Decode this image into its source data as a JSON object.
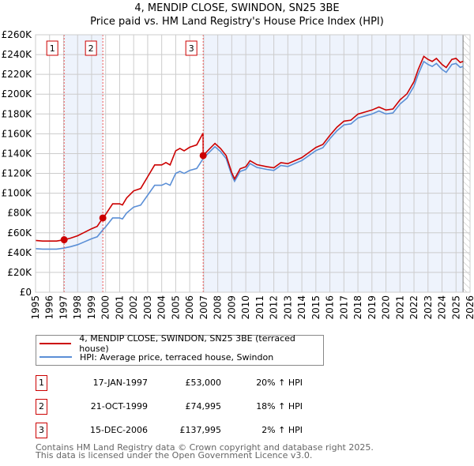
{
  "title_line1": "4, MENDIP CLOSE, SWINDON, SN25 3BE",
  "title_line2": "Price paid vs. HM Land Registry's House Price Index (HPI)",
  "legend": {
    "property": "4, MENDIP CLOSE, SWINDON, SN25 3BE (terraced house)",
    "hpi": "HPI: Average price, terraced house, Swindon"
  },
  "sales": [
    {
      "num": "1",
      "date": "17-JAN-1997",
      "price": "£53,000",
      "hpi_diff": "20% ↑ HPI",
      "t": 1997.04,
      "value": 53
    },
    {
      "num": "2",
      "date": "21-OCT-1999",
      "price": "£74,995",
      "hpi_diff": "18% ↑ HPI",
      "t": 1999.8,
      "value": 74.995
    },
    {
      "num": "3",
      "date": "15-DEC-2006",
      "price": "£137,995",
      "hpi_diff": "2% ↑ HPI",
      "t": 2006.96,
      "value": 137.995
    }
  ],
  "footer_line1": "Contains HM Land Registry data © Crown copyright and database right 2025.",
  "footer_line2": "This data is licensed under the Open Government Licence v3.0.",
  "colors": {
    "property": "#cc0000",
    "hpi": "#5b8fd6",
    "shade": "#eef3fc",
    "grid": "#cccccc"
  },
  "chart_data": {
    "type": "line",
    "title": "4, MENDIP CLOSE, SWINDON, SN25 3BE - Price paid vs. HM Land Registry's House Price Index (HPI)",
    "xlabel": "",
    "ylabel": "",
    "xlim": [
      1995,
      2026
    ],
    "ylim": [
      0,
      260
    ],
    "x_ticks": [
      "1995",
      "1996",
      "1997",
      "1998",
      "1999",
      "2000",
      "2001",
      "2002",
      "2003",
      "2004",
      "2005",
      "2006",
      "2007",
      "2008",
      "2009",
      "2010",
      "2011",
      "2012",
      "2013",
      "2014",
      "2015",
      "2016",
      "2017",
      "2018",
      "2019",
      "2020",
      "2021",
      "2022",
      "2023",
      "2024",
      "2025",
      "2026"
    ],
    "y_ticks": [
      "£0",
      "£20K",
      "£40K",
      "£60K",
      "£80K",
      "£100K",
      "£120K",
      "£140K",
      "£160K",
      "£180K",
      "£200K",
      "£220K",
      "£240K",
      "£260K"
    ],
    "grid": true,
    "legend_position": "below",
    "data_end": 2025.5,
    "series": [
      {
        "name": "HPI: Average price, terraced house, Swindon (£K)",
        "x": [
          1995,
          1995.5,
          1996,
          1996.5,
          1997,
          1997.5,
          1998,
          1998.5,
          1999,
          1999.4,
          1999.8,
          2000,
          2000.5,
          2001,
          2001.2,
          2001.5,
          2002,
          2002.5,
          2003,
          2003.5,
          2004,
          2004.3,
          2004.6,
          2005,
          2005.3,
          2005.6,
          2006,
          2006.5,
          2006.96,
          2007.3,
          2007.8,
          2008.2,
          2008.6,
          2009,
          2009.2,
          2009.6,
          2010,
          2010.3,
          2010.8,
          2011.5,
          2012,
          2012.5,
          2013,
          2013.5,
          2014,
          2014.5,
          2015,
          2015.5,
          2016,
          2016.5,
          2017,
          2017.5,
          2018,
          2018.5,
          2019,
          2019.5,
          2020,
          2020.5,
          2021,
          2021.5,
          2022,
          2022.3,
          2022.7,
          2023,
          2023.3,
          2023.6,
          2024,
          2024.3,
          2024.7,
          2025,
          2025.3,
          2025.5
        ],
        "y": [
          44,
          43.5,
          43.5,
          43.5,
          44.5,
          46,
          48,
          51,
          54,
          56,
          63,
          66,
          75,
          75,
          74,
          80,
          86,
          88,
          98,
          108,
          108,
          110,
          108,
          120,
          122,
          120,
          123,
          125,
          135,
          140,
          147,
          142,
          135,
          118,
          112,
          122,
          124,
          130,
          126,
          124,
          123,
          128,
          127,
          130,
          133,
          138,
          143,
          146,
          155,
          163,
          169,
          170,
          176,
          178,
          180,
          183,
          180,
          181,
          190,
          196,
          208,
          220,
          233,
          230,
          228,
          231,
          225,
          222,
          230,
          231,
          227,
          228
        ]
      },
      {
        "name": "4, MENDIP CLOSE, SWINDON, SN25 3BE (terraced house) (£K)",
        "derived_from": "HPI indexed to sales"
      }
    ]
  }
}
